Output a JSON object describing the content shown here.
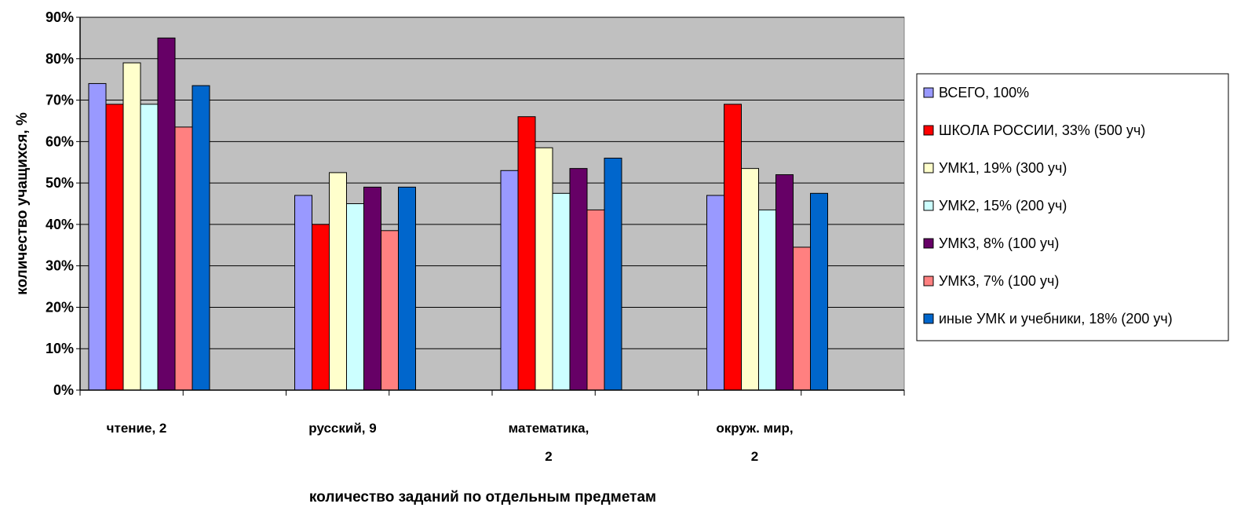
{
  "chart_data": {
    "type": "bar",
    "ylabel": "количество учащихся, %",
    "xlabel": "количество заданий по отдельным предметам",
    "ylim": [
      0,
      90
    ],
    "yticks": [
      0,
      10,
      20,
      30,
      40,
      50,
      60,
      70,
      80,
      90
    ],
    "ytick_suffix": "%",
    "grid": true,
    "legend_position": "right",
    "categories": [
      [
        "чтение, 2"
      ],
      [
        "русский, 9"
      ],
      [
        "математика,",
        "2"
      ],
      [
        "окруж. мир,",
        "2"
      ]
    ],
    "series": [
      {
        "name": "ВСЕГО, 100%",
        "color": "#9999ff",
        "values": [
          74,
          47,
          53,
          47
        ]
      },
      {
        "name": "ШКОЛА РОССИИ, 33%  (500 уч)",
        "color": "#ff0000",
        "values": [
          69,
          40,
          66,
          69
        ]
      },
      {
        "name": "УМК1, 19%  (300 уч)",
        "color": "#ffffcc",
        "values": [
          79,
          52.5,
          58.5,
          53.5
        ]
      },
      {
        "name": "УМК2, 15%  (200 уч)",
        "color": "#ccffff",
        "values": [
          69,
          45,
          47.5,
          43.5
        ]
      },
      {
        "name": "УМК3,  8%  (100 уч)",
        "color": "#660066",
        "values": [
          85,
          49,
          53.5,
          52
        ]
      },
      {
        "name": "УМК3,  7%  (100 уч)",
        "color": "#ff8080",
        "values": [
          63.5,
          38.5,
          43.5,
          34.5
        ]
      },
      {
        "name": "иные УМК и учебники,  18%  (200 уч)",
        "color": "#0066cc",
        "values": [
          73.5,
          49,
          56,
          47.5
        ]
      }
    ],
    "plot_background": "#c0c0c0"
  }
}
